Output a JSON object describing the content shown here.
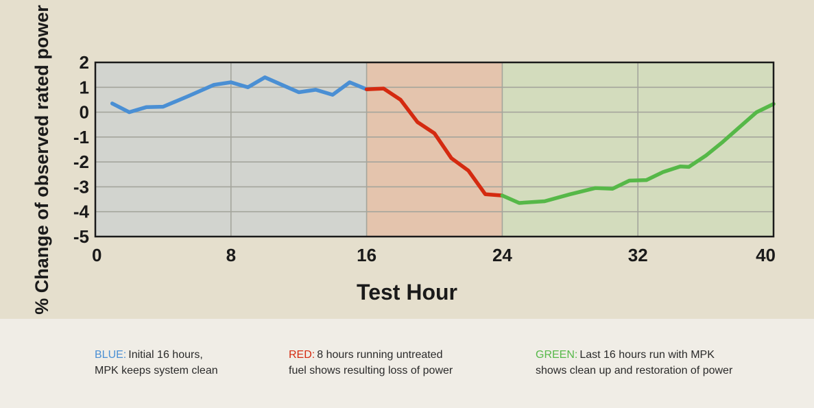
{
  "chart_data": {
    "type": "line",
    "xlabel": "Test Hour",
    "ylabel": "% Change of observed rated power",
    "xlim": [
      0,
      40
    ],
    "ylim": [
      -5,
      2
    ],
    "x_ticks": [
      "0",
      "8",
      "16",
      "24",
      "32",
      "40"
    ],
    "y_ticks": [
      "2",
      "1",
      "0",
      "-1",
      "-2",
      "-3",
      "-4",
      "-5"
    ],
    "grid": true,
    "regions": [
      {
        "x_start": 0,
        "x_end": 16,
        "color": "#d2d4cf"
      },
      {
        "x_start": 16,
        "x_end": 24,
        "color": "#e4c4ad"
      },
      {
        "x_start": 24,
        "x_end": 40,
        "color": "#d3dcbd"
      }
    ],
    "series": [
      {
        "color": "#4a8fd4",
        "points": [
          [
            1,
            0.35
          ],
          [
            2,
            0
          ],
          [
            3,
            0.2
          ],
          [
            4,
            0.22
          ],
          [
            5.5,
            0.65
          ],
          [
            7,
            1.1
          ],
          [
            8,
            1.2
          ],
          [
            9,
            1
          ],
          [
            10,
            1.4
          ],
          [
            11,
            1.1
          ],
          [
            12,
            0.8
          ],
          [
            13,
            0.9
          ],
          [
            14,
            0.7
          ],
          [
            15,
            1.2
          ],
          [
            16,
            0.92
          ]
        ]
      },
      {
        "color": "#d42a10",
        "points": [
          [
            16,
            0.92
          ],
          [
            17,
            0.95
          ],
          [
            18,
            0.5
          ],
          [
            19,
            -0.4
          ],
          [
            20,
            -0.85
          ],
          [
            21,
            -1.85
          ],
          [
            22,
            -2.35
          ],
          [
            23,
            -3.3
          ],
          [
            24,
            -3.35
          ]
        ]
      },
      {
        "color": "#56b848",
        "points": [
          [
            24,
            -3.35
          ],
          [
            25,
            -3.65
          ],
          [
            26.5,
            -3.58
          ],
          [
            28,
            -3.3
          ],
          [
            29.5,
            -3.05
          ],
          [
            30.5,
            -3.08
          ],
          [
            31.5,
            -2.75
          ],
          [
            32.5,
            -2.73
          ],
          [
            33.5,
            -2.4
          ],
          [
            34.5,
            -2.18
          ],
          [
            35,
            -2.2
          ],
          [
            36,
            -1.75
          ],
          [
            37,
            -1.2
          ],
          [
            38,
            -0.6
          ],
          [
            39,
            0
          ],
          [
            40,
            0.33
          ]
        ]
      }
    ]
  },
  "legend": {
    "blue": {
      "key": "BLUE:",
      "key_color": "#4a8fd4",
      "text": "Initial 16 hours,\nMPK keeps  system clean"
    },
    "red": {
      "key": "RED:",
      "key_color": "#d42a10",
      "text": "8 hours running untreated\nfuel  shows resulting loss of power"
    },
    "green": {
      "key": "GREEN:",
      "key_color": "#56b848",
      "text": "Last 16 hours run with MPK\nshows clean up and restoration of power"
    }
  }
}
